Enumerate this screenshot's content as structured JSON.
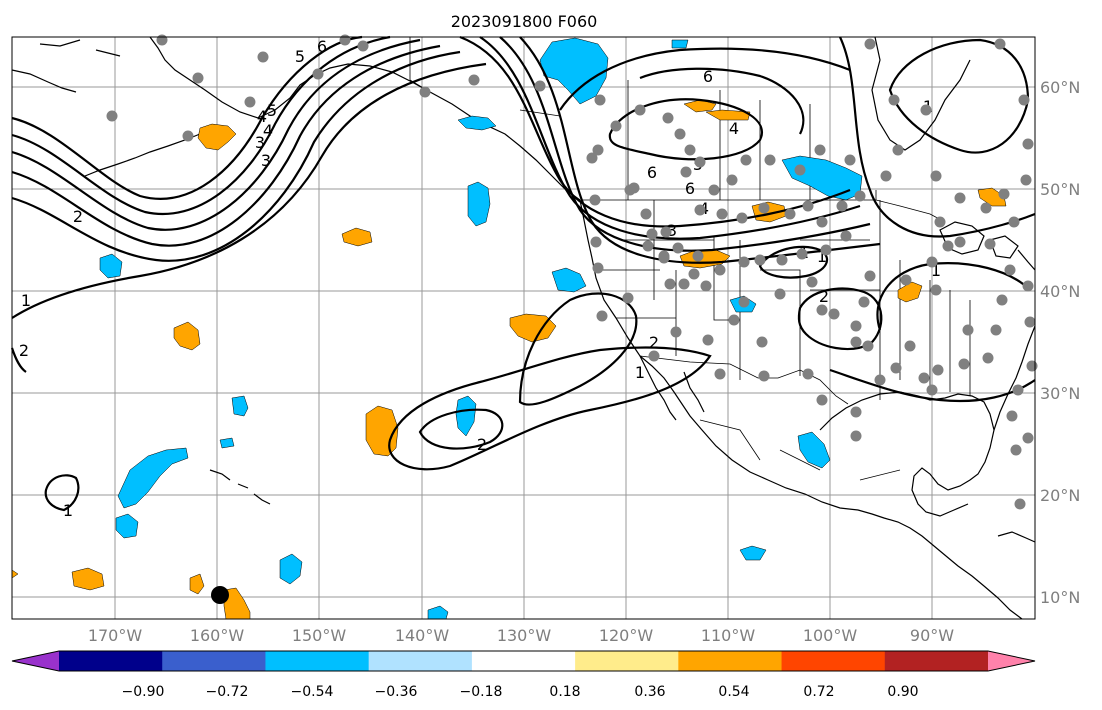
{
  "map": {
    "title": "2023091800 F060",
    "lon_ticks": [
      "170°W",
      "160°W",
      "150°W",
      "140°W",
      "130°W",
      "120°W",
      "110°W",
      "100°W",
      "90°W"
    ],
    "lat_ticks": [
      "60°N",
      "50°N",
      "40°N",
      "30°N",
      "20°N",
      "10°N"
    ],
    "tick_color": "#7f7f7f",
    "grid": true
  },
  "contours": {
    "labels": [
      "6",
      "5",
      "4",
      "3",
      "2",
      "1",
      "6",
      "5",
      "4",
      "3",
      "2",
      "1",
      "6",
      "4",
      "6",
      "5",
      "4",
      "3",
      "1",
      "2",
      "1",
      "1",
      "2",
      "1",
      "2",
      "1"
    ]
  },
  "colorbar": {
    "colors": [
      "#9932cc",
      "#00008b",
      "#3a5fcd",
      "#00bfff",
      "#b0e2ff",
      "#ffffff",
      "#ffec8b",
      "#ffa500",
      "#ff4500",
      "#b22222",
      "#ff82ab"
    ],
    "labels": [
      "−0.90",
      "−0.72",
      "−0.54",
      "−0.36",
      "−0.18",
      "0.18",
      "0.36",
      "0.54",
      "0.72",
      "0.90"
    ],
    "label_values": [
      -0.9,
      -0.72,
      -0.54,
      -0.36,
      -0.18,
      0.18,
      0.36,
      0.54,
      0.72,
      0.9
    ]
  }
}
